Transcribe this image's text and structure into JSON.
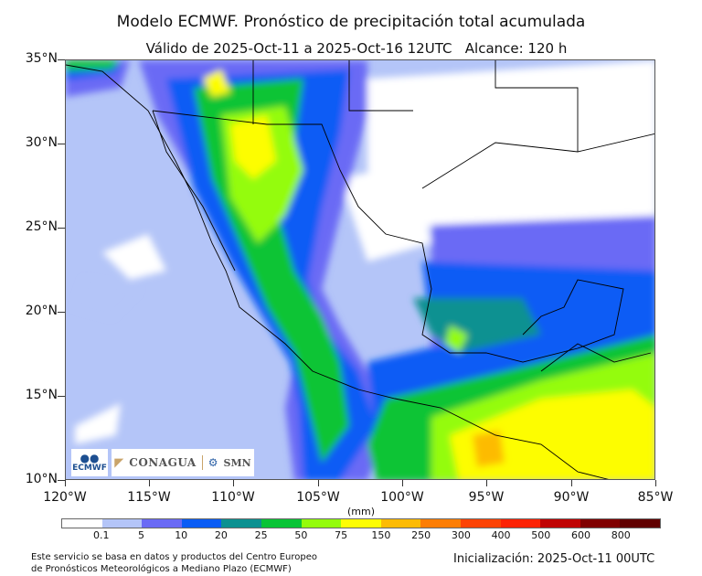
{
  "header": {
    "title": "Modelo ECMWF. Pronóstico de precipitación total acumulada",
    "subtitle": "Válido de 2025-Oct-11 a 2025-Oct-16 12UTC   Alcance: 120 h"
  },
  "map": {
    "y_axis": [
      "35°N",
      "30°N",
      "25°N",
      "20°N",
      "15°N",
      "10°N"
    ],
    "x_axis": [
      "120°W",
      "115°W",
      "110°W",
      "105°W",
      "100°W",
      "95°W",
      "90°W",
      "85°W"
    ],
    "extent": {
      "lon_min": -120,
      "lon_max": -85,
      "lat_min": 10,
      "lat_max": 35
    }
  },
  "colorbar": {
    "units": "(mm)",
    "labels": [
      "0.1",
      "5",
      "10",
      "20",
      "25",
      "50",
      "75",
      "150",
      "250",
      "300",
      "400",
      "500",
      "600",
      "800"
    ],
    "colors": [
      "#ffffff",
      "#b4c5f8",
      "#6a6af5",
      "#0a5cf5",
      "#0b9191",
      "#09c436",
      "#94fc0c",
      "#fdfd04",
      "#fdbb05",
      "#fd7e05",
      "#fd4305",
      "#fd2305",
      "#c00303",
      "#800000",
      "#600000"
    ]
  },
  "logos": {
    "ecmwf": "ECMWF",
    "conagua": "CONAGUA",
    "smn": "SMN"
  },
  "footer": {
    "source_line1": "Este servicio se basa en datos y productos del Centro Europeo",
    "source_line2": "de Pronósticos Meteorológicos a Mediano Plazo (ECMWF)",
    "init": "Inicialización: 2025-Oct-11 00UTC"
  }
}
